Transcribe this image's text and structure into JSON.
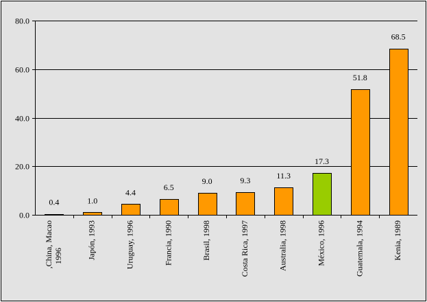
{
  "chart_data": {
    "type": "bar",
    "categories": [
      ",China, Macao\n1996",
      "Japón, 1993",
      "Uruguay, 1996",
      "Francia, 1990",
      "Brasil, 1998",
      "Costa Rica, 1997",
      "Australia, 1998",
      "México, 1996",
      "Guatemala, 1994",
      "Kenia, 1989"
    ],
    "values": [
      0.4,
      1.0,
      4.4,
      6.5,
      9.0,
      9.3,
      11.3,
      17.3,
      51.8,
      68.5
    ],
    "value_labels": [
      "0.4",
      "1.0",
      "4.4",
      "6.5",
      "9.0",
      "9.3",
      "11.3",
      "17.3",
      "51.8",
      "68.5"
    ],
    "ylim": [
      0,
      80
    ],
    "yticks": [
      0,
      20,
      40,
      60,
      80
    ],
    "ytick_labels": [
      "0.0",
      "20.0",
      "40.0",
      "60.0",
      "80.0"
    ],
    "grid": true,
    "colors": {
      "bar": "#ff9900",
      "highlight_bar": "#99cc00",
      "plot_background": "#e3e3e3",
      "gridline": "#000000"
    },
    "highlight_index": 7,
    "title": "",
    "xlabel": "",
    "ylabel": ""
  }
}
